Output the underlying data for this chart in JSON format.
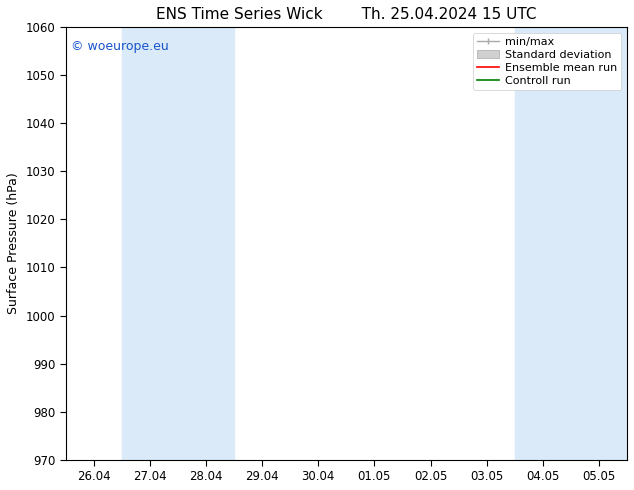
{
  "title_left": "ENS Time Series Wick",
  "title_right": "Th. 25.04.2024 15 UTC",
  "ylabel": "Surface Pressure (hPa)",
  "ylim": [
    970,
    1060
  ],
  "yticks": [
    970,
    980,
    990,
    1000,
    1010,
    1020,
    1030,
    1040,
    1050,
    1060
  ],
  "x_tick_labels": [
    "26.04",
    "27.04",
    "28.04",
    "29.04",
    "30.04",
    "01.05",
    "02.05",
    "03.05",
    "04.05",
    "05.05"
  ],
  "x_tick_positions": [
    0,
    1,
    2,
    3,
    4,
    5,
    6,
    7,
    8,
    9
  ],
  "xlim": [
    -0.5,
    9.5
  ],
  "shaded_bands": [
    {
      "x_start": 0.5,
      "x_end": 2.5
    },
    {
      "x_start": 7.5,
      "x_end": 9.5
    }
  ],
  "shaded_color": "#daeaf8",
  "watermark_text": "© woeurope.eu",
  "watermark_color": "#1a55cc",
  "legend_labels": [
    "min/max",
    "Standard deviation",
    "Ensemble mean run",
    "Controll run"
  ],
  "legend_colors_line": [
    "#aaaaaa",
    "#cccccc",
    "#ff0000",
    "#008000"
  ],
  "background_color": "#ffffff",
  "plot_bg_color": "#ffffff",
  "title_fontsize": 11,
  "tick_fontsize": 8.5,
  "ylabel_fontsize": 9,
  "watermark_fontsize": 9,
  "legend_fontsize": 8
}
